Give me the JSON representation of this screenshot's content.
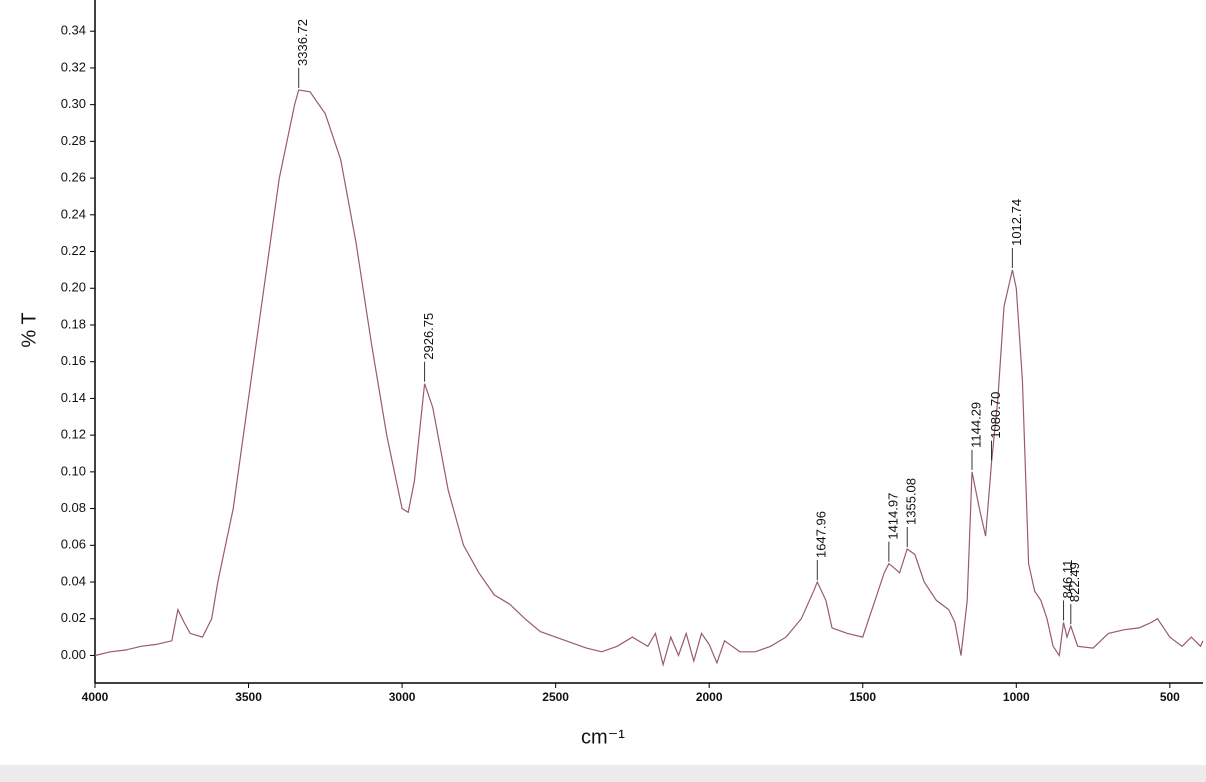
{
  "chart_data": {
    "type": "line",
    "x_label": "cm⁻¹",
    "y_label": "% T",
    "color": "#9a5a6c",
    "xlim": [
      4000,
      392
    ],
    "ylim": [
      -0.015,
      0.357
    ],
    "xticks": [
      4000,
      3500,
      3000,
      2500,
      2000,
      1500,
      1000,
      500
    ],
    "yticks": [
      {
        "value": 0,
        "label": "0.00"
      },
      {
        "value": 0.02,
        "label": "0.02"
      },
      {
        "value": 0.04,
        "label": "0.04"
      },
      {
        "value": 0.06,
        "label": "0.06"
      },
      {
        "value": 0.08,
        "label": "0.08"
      },
      {
        "value": 0.1,
        "label": "0.10"
      },
      {
        "value": 0.12,
        "label": "0.12"
      },
      {
        "value": 0.14,
        "label": "0.14"
      },
      {
        "value": 0.16,
        "label": "0.16"
      },
      {
        "value": 0.18,
        "label": "0.18"
      },
      {
        "value": 0.2,
        "label": "0.20"
      },
      {
        "value": 0.22,
        "label": "0.22"
      },
      {
        "value": 0.24,
        "label": "0.24"
      },
      {
        "value": 0.26,
        "label": "0.26"
      },
      {
        "value": 0.28,
        "label": "0.28"
      },
      {
        "value": 0.3,
        "label": "0.30"
      },
      {
        "value": 0.32,
        "label": "0.32"
      },
      {
        "value": 0.34,
        "label": "0.34"
      }
    ],
    "x": [
      4000,
      3950,
      3900,
      3850,
      3800,
      3750,
      3730,
      3710,
      3690,
      3650,
      3620,
      3600,
      3550,
      3500,
      3450,
      3400,
      3350,
      3336.72,
      3300,
      3250,
      3200,
      3150,
      3100,
      3050,
      3000,
      2980,
      2960,
      2926.75,
      2900,
      2850,
      2800,
      2750,
      2700,
      2650,
      2600,
      2550,
      2500,
      2450,
      2400,
      2350,
      2300,
      2250,
      2200,
      2175,
      2150,
      2125,
      2100,
      2075,
      2050,
      2025,
      2000,
      1975,
      1950,
      1900,
      1850,
      1800,
      1750,
      1700,
      1660,
      1647.96,
      1620,
      1600,
      1550,
      1500,
      1460,
      1430,
      1414.97,
      1400,
      1380,
      1355.08,
      1330,
      1300,
      1260,
      1220,
      1200,
      1180,
      1160,
      1144.29,
      1120,
      1100,
      1080.7,
      1060,
      1040,
      1012.74,
      1000,
      980,
      960,
      940,
      920,
      900,
      880,
      860,
      846.11,
      835,
      822.49,
      800,
      750,
      700,
      650,
      600,
      560,
      540,
      520,
      500,
      460,
      430,
      400,
      392
    ],
    "values": [
      0.0,
      0.002,
      0.003,
      0.005,
      0.006,
      0.008,
      0.025,
      0.018,
      0.012,
      0.01,
      0.02,
      0.04,
      0.08,
      0.14,
      0.2,
      0.26,
      0.3,
      0.308,
      0.307,
      0.295,
      0.27,
      0.225,
      0.17,
      0.12,
      0.08,
      0.078,
      0.095,
      0.148,
      0.135,
      0.09,
      0.06,
      0.045,
      0.033,
      0.028,
      0.02,
      0.013,
      0.01,
      0.007,
      0.004,
      0.002,
      0.005,
      0.01,
      0.005,
      0.012,
      -0.005,
      0.01,
      0.0,
      0.012,
      -0.003,
      0.012,
      0.006,
      -0.004,
      0.008,
      0.002,
      0.002,
      0.005,
      0.01,
      0.02,
      0.035,
      0.04,
      0.03,
      0.015,
      0.012,
      0.01,
      0.03,
      0.045,
      0.05,
      0.048,
      0.045,
      0.058,
      0.055,
      0.04,
      0.03,
      0.025,
      0.018,
      0.0,
      0.03,
      0.1,
      0.08,
      0.065,
      0.105,
      0.14,
      0.19,
      0.21,
      0.2,
      0.15,
      0.05,
      0.035,
      0.03,
      0.02,
      0.005,
      0.0,
      0.018,
      0.01,
      0.016,
      0.005,
      0.004,
      0.012,
      0.014,
      0.015,
      0.018,
      0.02,
      0.015,
      0.01,
      0.005,
      0.01,
      0.005,
      0.008
    ],
    "annotations": [
      {
        "text": "3336.72",
        "x": 3336.72,
        "y": 0.308
      },
      {
        "text": "2926.75",
        "x": 2926.75,
        "y": 0.148
      },
      {
        "text": "1647.96",
        "x": 1647.96,
        "y": 0.04
      },
      {
        "text": "1414.97",
        "x": 1414.97,
        "y": 0.05
      },
      {
        "text": "1355.08",
        "x": 1355.08,
        "y": 0.058
      },
      {
        "text": "1144.29",
        "x": 1144.29,
        "y": 0.1
      },
      {
        "text": "1080.70",
        "x": 1080.7,
        "y": 0.105
      },
      {
        "text": "1012.74",
        "x": 1012.74,
        "y": 0.21
      },
      {
        "text": "846.11",
        "x": 846.11,
        "y": 0.018
      },
      {
        "text": "822.49",
        "x": 822.49,
        "y": 0.016
      }
    ]
  }
}
